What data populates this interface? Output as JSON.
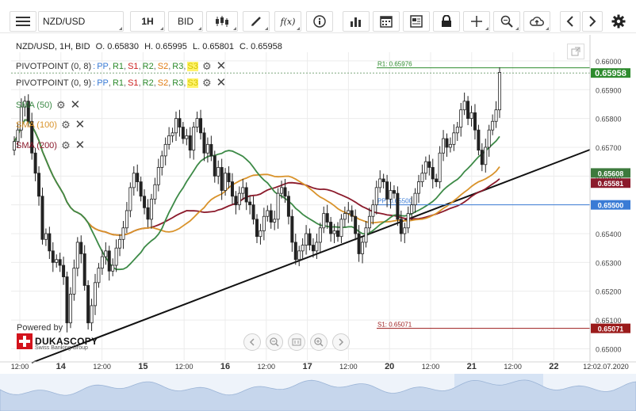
{
  "toolbar": {
    "symbol": "NZD/USD",
    "timeframe": "1H",
    "price_side": "BID",
    "icons": [
      "menu-icon",
      "candles-icon",
      "draw-pencil-icon",
      "fx-icon",
      "info-icon",
      "volume-bars-icon",
      "calendar-icon",
      "news-icon",
      "lock-icon",
      "crosshair-icon",
      "zoom-icon",
      "cloud-upload-icon",
      "chevron-left-icon",
      "chevron-right-icon",
      "gear-icon"
    ],
    "fx_label": "f(x)"
  },
  "header": {
    "instrument": "NZD/USD, 1H, BID",
    "open": "O. 0.65830",
    "high": "H. 0.65995",
    "low": "L. 0.65801",
    "close": "C. 0.65958"
  },
  "indicators": [
    {
      "name": "PIVOTPOINT (0, 8)",
      "levels": [
        "PP",
        "R1",
        "S1",
        "R2",
        "S2",
        "R3",
        "S3"
      ],
      "level_colors": [
        "#3a7bd5",
        "#2e8b2e",
        "#cc2222",
        "#2e8b2e",
        "#e07a10",
        "#2e8b2e",
        "#d4c400"
      ]
    },
    {
      "name": "PIVOTPOINT (0, 9)",
      "levels": [
        "PP",
        "R1",
        "S1",
        "R2",
        "S2",
        "R3",
        "S3"
      ],
      "level_colors": [
        "#3a7bd5",
        "#2e8b2e",
        "#cc2222",
        "#2e8b2e",
        "#e07a10",
        "#2e8b2e",
        "#d4c400"
      ]
    },
    {
      "name": "SMA (50)",
      "color": "#3d8a47"
    },
    {
      "name": "SMA (100)",
      "color": "#d9932b"
    },
    {
      "name": "SMA (200)",
      "color": "#8b1a2b"
    }
  ],
  "branding": {
    "powered_by": "Powered by",
    "logo_text": "DUKASCOPY",
    "logo_sub": "Swiss Banking Group"
  },
  "chart_data": {
    "type": "candlestick",
    "y_axis": {
      "range": [
        0.6496,
        0.6603
      ],
      "ticks": [
        "0.66000",
        "0.65900",
        "0.65800",
        "0.65700",
        "0.65600",
        "0.65500",
        "0.65400",
        "0.65300",
        "0.65200",
        "0.65100",
        "0.65000"
      ]
    },
    "x_axis": {
      "labels": [
        "12:00",
        "14",
        "12:00",
        "15",
        "12:00",
        "16",
        "12:00",
        "17",
        "12:00",
        "20",
        "12:00",
        "21",
        "12:00",
        "22",
        "12:02.07.2020"
      ],
      "bold_labels": [
        "14",
        "15",
        "16",
        "17",
        "20",
        "21",
        "22"
      ]
    },
    "price_tags": [
      {
        "value": 0.65958,
        "label": "0.65958",
        "color": "#2e8b2e"
      },
      {
        "value": 0.65608,
        "label": "0.65608",
        "color": "#3d7a3d"
      },
      {
        "value": 0.65581,
        "label": "0.65581",
        "color": "#8b1a2b"
      },
      {
        "value": 0.655,
        "label": "0.65500",
        "color": "#3a7bd5"
      },
      {
        "value": 0.65071,
        "label": "0.65071",
        "color": "#9b1b1b"
      }
    ],
    "pivot_lines": [
      {
        "label": "R1: 0.65976",
        "value": 0.65976,
        "color": "#2e8b2e"
      },
      {
        "label": "PP: 0.65500",
        "value": 0.655,
        "color": "#3a7bd5"
      },
      {
        "label": "S1: 0.65071",
        "value": 0.65071,
        "color": "#9b1b1b"
      }
    ],
    "close_series": [
      0.6572,
      0.6576,
      0.6584,
      0.6586,
      0.6579,
      0.6568,
      0.6561,
      0.6553,
      0.6538,
      0.654,
      0.6534,
      0.653,
      0.6531,
      0.6529,
      0.6525,
      0.6509,
      0.6519,
      0.6528,
      0.6537,
      0.6533,
      0.6522,
      0.6509,
      0.6515,
      0.6523,
      0.6528,
      0.6532,
      0.6534,
      0.6527,
      0.6529,
      0.6535,
      0.6538,
      0.6542,
      0.6548,
      0.6556,
      0.6561,
      0.6558,
      0.6553,
      0.6549,
      0.6545,
      0.6552,
      0.6557,
      0.6563,
      0.6567,
      0.6571,
      0.6574,
      0.6575,
      0.658,
      0.6577,
      0.6573,
      0.6574,
      0.6569,
      0.6577,
      0.658,
      0.6575,
      0.6568,
      0.6571,
      0.6567,
      0.656,
      0.6563,
      0.6555,
      0.6561,
      0.6558,
      0.6553,
      0.655,
      0.6554,
      0.6556,
      0.6551,
      0.655,
      0.6545,
      0.6539,
      0.6541,
      0.6546,
      0.6548,
      0.6544,
      0.6545,
      0.6554,
      0.6556,
      0.6553,
      0.6546,
      0.6537,
      0.6531,
      0.6534,
      0.6536,
      0.654,
      0.6536,
      0.6534,
      0.6537,
      0.6542,
      0.6547,
      0.6544,
      0.654,
      0.6541,
      0.6539,
      0.6545,
      0.6547,
      0.6548,
      0.6546,
      0.654,
      0.6533,
      0.6537,
      0.6542,
      0.6546,
      0.655,
      0.6556,
      0.6559,
      0.6558,
      0.6552,
      0.6555,
      0.6554,
      0.6545,
      0.654,
      0.6542,
      0.6547,
      0.655,
      0.6554,
      0.6558,
      0.6561,
      0.6565,
      0.6563,
      0.6559,
      0.6558,
      0.6568,
      0.6573,
      0.657,
      0.6571,
      0.6575,
      0.6577,
      0.6583,
      0.6586,
      0.658,
      0.6582,
      0.6576,
      0.6569,
      0.6564,
      0.657,
      0.6576,
      0.6579,
      0.6583,
      0.6596
    ]
  }
}
